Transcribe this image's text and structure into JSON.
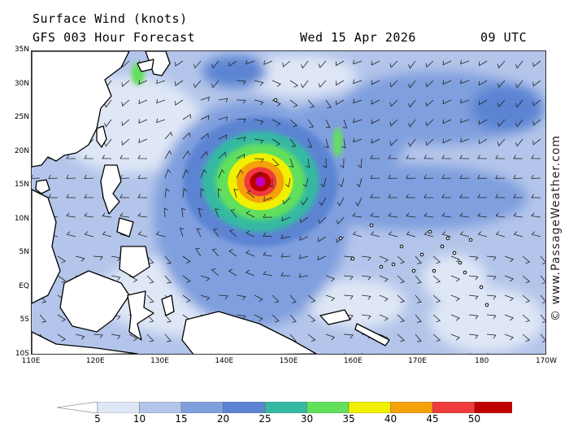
{
  "header": {
    "title": "Surface Wind (knots)",
    "forecast": "GFS 003 Hour Forecast",
    "date": "Wed 15 Apr 2026",
    "time": "09 UTC"
  },
  "copyright": "© www.PassageWeather.com",
  "map": {
    "lat_labels": [
      "35N",
      "30N",
      "25N",
      "20N",
      "15N",
      "10N",
      "5N",
      "EQ",
      "5S",
      "10S"
    ],
    "lon_labels": [
      "110E",
      "120E",
      "130E",
      "140E",
      "150E",
      "160E",
      "170E",
      "180",
      "170W"
    ],
    "lat_range": [
      -10,
      35
    ],
    "lon_range": [
      110,
      190
    ],
    "storm_center": {
      "lon": 145.5,
      "lat": 15.7
    }
  },
  "legend": {
    "labels": [
      "5",
      "10",
      "15",
      "20",
      "25",
      "30",
      "35",
      "40",
      "45",
      "50"
    ],
    "colors": [
      "#dfe7f6",
      "#b3c5ea",
      "#7f9fde",
      "#5c84d3",
      "#35b9a2",
      "#62e05c",
      "#f0f000",
      "#f5a10a",
      "#ef3b3b",
      "#c00000",
      "#c000c0"
    ],
    "under_color": "#ffffff",
    "over_color": "#cc00cc"
  }
}
